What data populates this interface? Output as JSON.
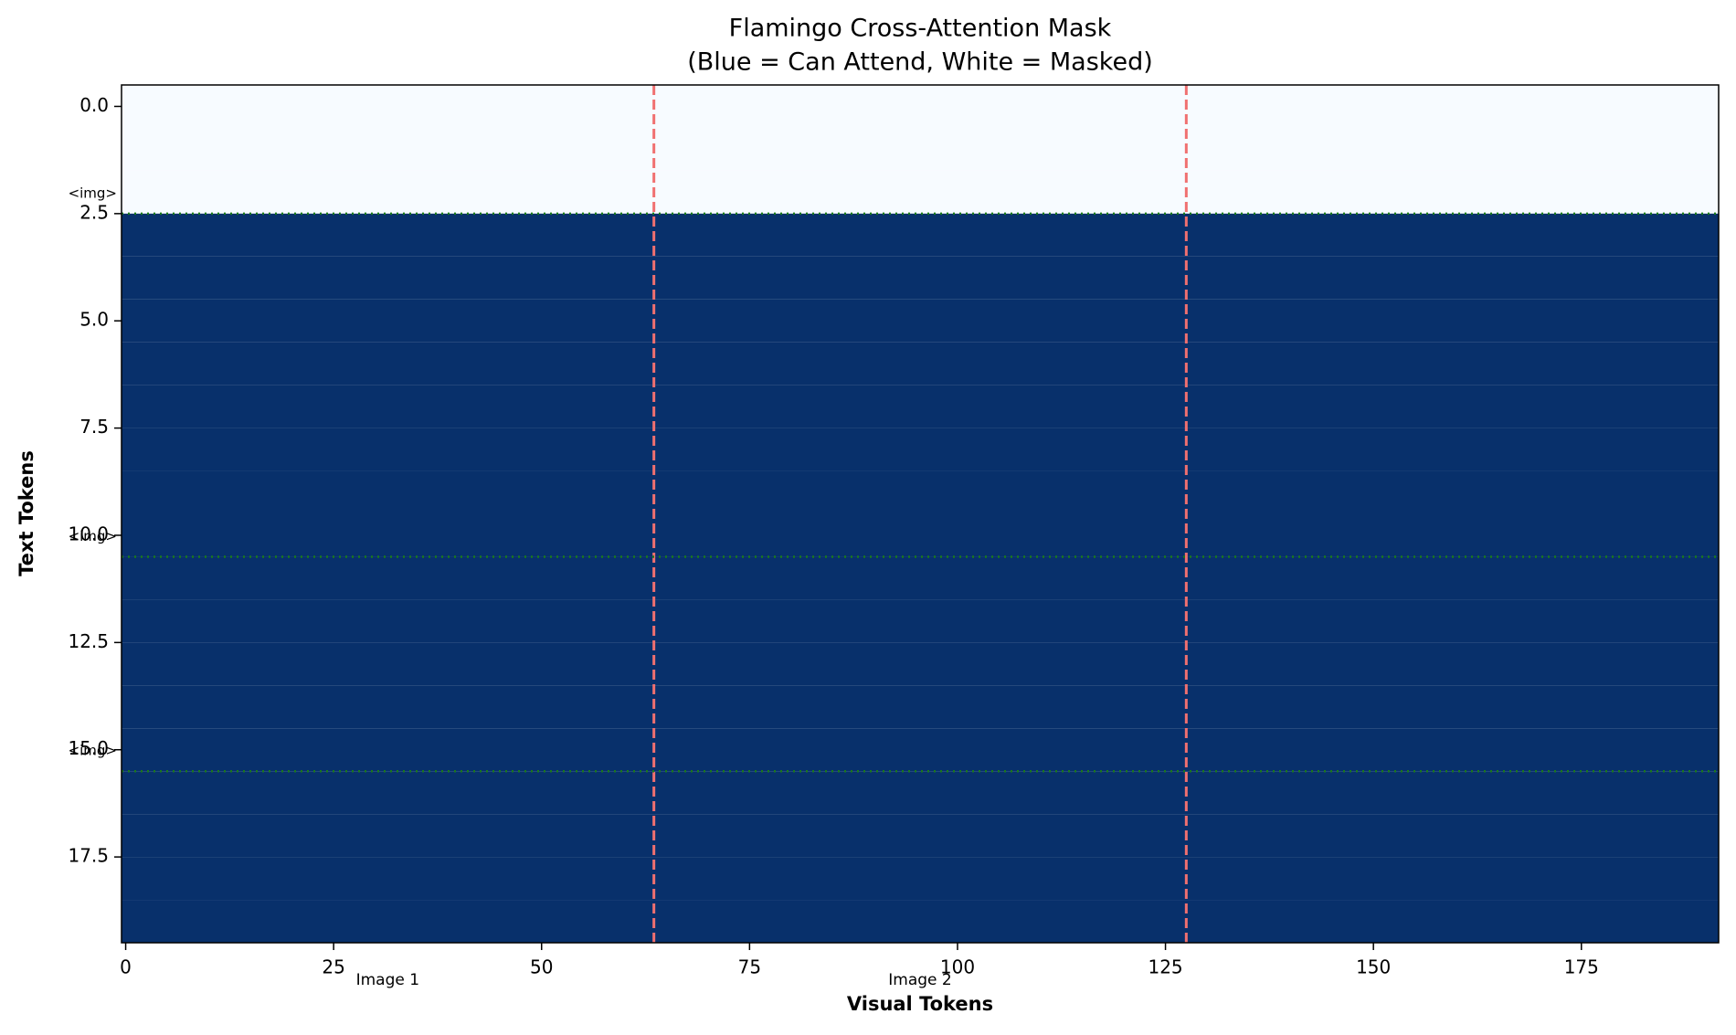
{
  "chart_data": {
    "type": "heatmap",
    "title": "Flamingo Cross-Attention Mask",
    "subtitle": "(Blue = Can Attend, White = Masked)",
    "x_label": "Visual Tokens",
    "y_label": "Text Tokens",
    "values": [
      0,
      0,
      0,
      1,
      1,
      1,
      1,
      1,
      1,
      1,
      1,
      1,
      1,
      1,
      1,
      1,
      1,
      1,
      1,
      1
    ],
    "cmap_colors": [
      "#f7fbff",
      "#08306b"
    ],
    "clim": [
      0,
      1
    ],
    "xlim": [
      -0.5,
      191.5
    ],
    "ylim": [
      19.5,
      -0.5
    ],
    "xticks": [
      0,
      25,
      50,
      75,
      100,
      125,
      150,
      175
    ],
    "yticks": [
      {
        "value": 0,
        "label": "0.0"
      },
      2.5,
      {
        "value": 5,
        "label": "5.0"
      },
      7.5,
      {
        "value": 10,
        "label": "10.0"
      },
      12.5,
      {
        "value": 15,
        "label": "15.0"
      },
      17.5
    ],
    "vlines": {
      "color": "#f07070",
      "values": [
        63.5,
        127.5
      ]
    },
    "hlines": {
      "color": "#1a7a1a",
      "values": [
        2.5,
        10.5,
        15.5
      ],
      "labels": [
        "<img>",
        "<img>",
        "<img>"
      ]
    },
    "segment_labels": {
      "color": "#ff0000",
      "x": [
        31.5,
        95.5
      ],
      "labels": [
        "Image 1",
        "Image 2"
      ]
    }
  }
}
